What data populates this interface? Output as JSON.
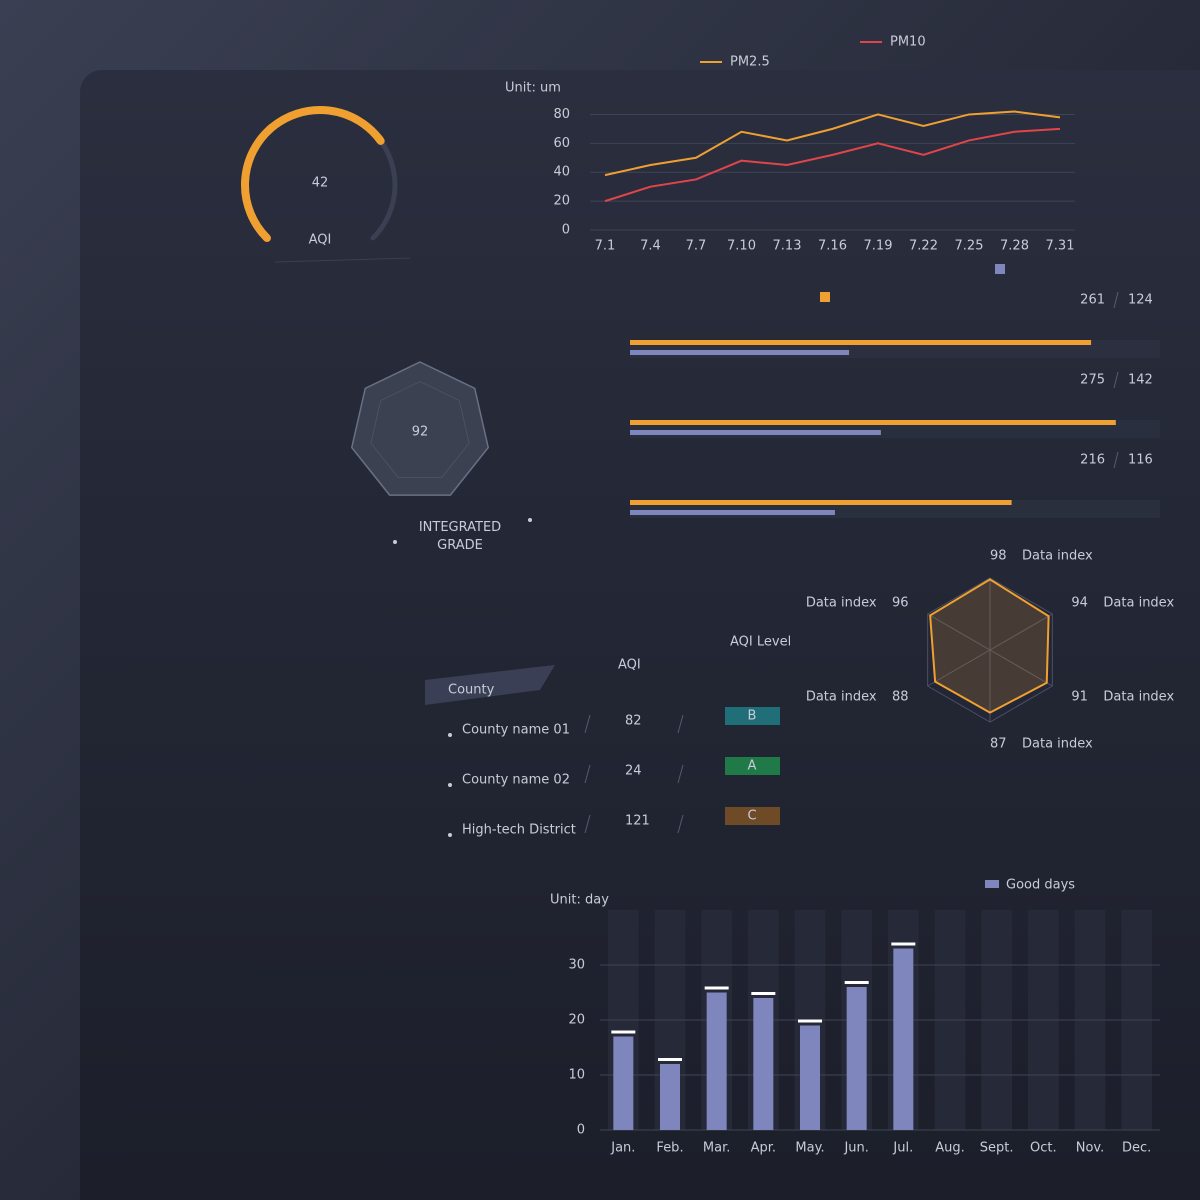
{
  "chart_data": [
    {
      "type": "gauge",
      "label": "AQI",
      "value": 42,
      "ylim": [
        0,
        60
      ],
      "color": "#f0a030"
    },
    {
      "type": "line",
      "unit": "Unit: um",
      "categories": [
        "7.1",
        "7.4",
        "7.7",
        "7.10",
        "7.13",
        "7.16",
        "7.19",
        "7.22",
        "7.25",
        "7.28",
        "7.31"
      ],
      "series": [
        {
          "name": "PM2.5",
          "color": "#f0a030",
          "values": [
            38,
            45,
            50,
            68,
            62,
            70,
            80,
            72,
            80,
            82,
            78
          ]
        },
        {
          "name": "PM10",
          "color": "#e0454a",
          "values": [
            20,
            30,
            35,
            48,
            45,
            52,
            60,
            52,
            62,
            68,
            70
          ]
        }
      ],
      "ylim": [
        0,
        90
      ],
      "yticks": [
        0,
        20,
        40,
        60,
        80
      ],
      "grid": true
    },
    {
      "type": "hbar",
      "series": [
        {
          "color": "#f0a030",
          "values": [
            261,
            275,
            216
          ]
        },
        {
          "color": "#7f86bd",
          "values": [
            124,
            142,
            116
          ]
        }
      ],
      "xlim": [
        0,
        300
      ]
    },
    {
      "type": "badge",
      "value": 92,
      "label": "INTEGRATED GRADE"
    },
    {
      "type": "radar",
      "categories": [
        "Data index",
        "Data index",
        "Data index",
        "Data index",
        "Data index",
        "Data index"
      ],
      "values": [
        98,
        94,
        91,
        87,
        88,
        96
      ],
      "rlim": [
        0,
        100
      ],
      "color": "#f0a030"
    },
    {
      "type": "bar",
      "unit": "Unit: day",
      "legend": "Good days",
      "color": "#7f86bd",
      "categories": [
        "Jan.",
        "Feb.",
        "Mar.",
        "Apr.",
        "May.",
        "Jun.",
        "Jul.",
        "Aug.",
        "Sept.",
        "Oct.",
        "Nov.",
        "Dec."
      ],
      "values": [
        17,
        12,
        25,
        24,
        19,
        26,
        33,
        null,
        null,
        null,
        null,
        null
      ],
      "ylim": [
        0,
        40
      ],
      "yticks": [
        0,
        10,
        20,
        30
      ],
      "grid": true
    }
  ],
  "table": {
    "headers": [
      "County",
      "AQI",
      "AQI Level"
    ],
    "rows": [
      [
        "County name 01",
        82,
        "B"
      ],
      [
        "County name 02",
        24,
        "A"
      ],
      [
        "High-tech District",
        121,
        "C"
      ]
    ],
    "level_colors": [
      "#1f6e78",
      "#1f7a48",
      "#6e4a26"
    ],
    "level_text_colors": [
      "#4fd6e6",
      "#4fe08a",
      "#f0a030"
    ]
  }
}
